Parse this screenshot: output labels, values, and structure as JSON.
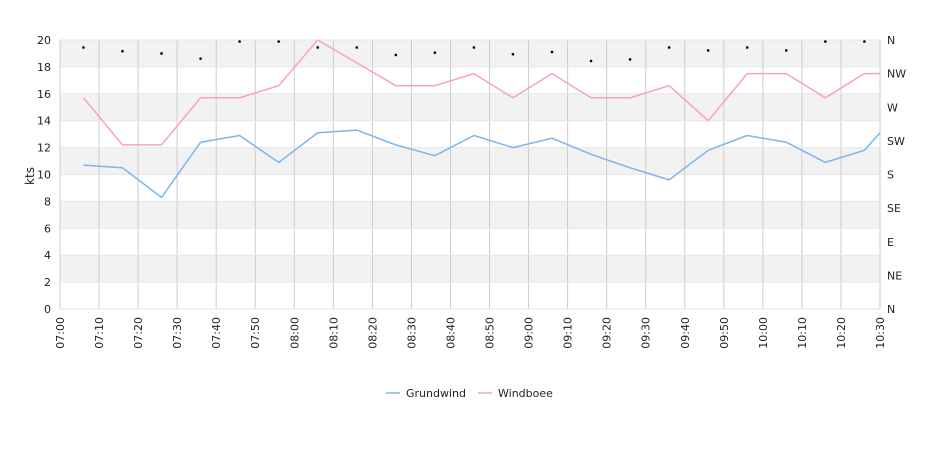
{
  "chart_data": {
    "type": "line",
    "ylabel": "kts",
    "ylim": [
      0,
      20
    ],
    "y_ticks": [
      "0",
      "2",
      "4",
      "6",
      "8",
      "10",
      "12",
      "14",
      "16",
      "18",
      "20"
    ],
    "x_ticks": [
      "07:00",
      "07:10",
      "07:20",
      "07:30",
      "07:40",
      "07:50",
      "08:00",
      "08:10",
      "08:20",
      "08:30",
      "08:40",
      "08:50",
      "09:00",
      "09:10",
      "09:20",
      "09:30",
      "09:40",
      "09:50",
      "10:00",
      "10:10",
      "10:20",
      "10:30"
    ],
    "direction_axis": {
      "labels": [
        "N",
        "NE",
        "E",
        "SE",
        "S",
        "SW",
        "W",
        "NW",
        "N"
      ],
      "range": [
        0,
        360
      ]
    },
    "x": [
      "07:06",
      "07:16",
      "07:26",
      "07:36",
      "07:46",
      "07:56",
      "08:06",
      "08:16",
      "08:26",
      "08:36",
      "08:46",
      "08:56",
      "09:06",
      "09:16",
      "09:26",
      "09:36",
      "09:46",
      "09:56",
      "10:06",
      "10:16",
      "10:26",
      "10:30"
    ],
    "series": [
      {
        "name": "Grundwind",
        "color": "#7cb5ec",
        "values": [
          10.7,
          10.5,
          8.3,
          12.4,
          12.9,
          10.9,
          13.1,
          13.3,
          12.2,
          11.4,
          12.9,
          12.0,
          12.7,
          11.5,
          10.5,
          9.6,
          11.8,
          12.9,
          12.4,
          10.9,
          11.8,
          13.1
        ]
      },
      {
        "name": "Windboee",
        "color": "#f7a0c8",
        "values": [
          15.7,
          12.2,
          12.2,
          15.7,
          15.7,
          16.6,
          20.0,
          18.3,
          16.6,
          16.6,
          17.5,
          15.7,
          17.5,
          15.7,
          15.7,
          16.6,
          14.0,
          17.5,
          17.5,
          15.7,
          17.5,
          17.5
        ]
      }
    ],
    "direction_points": {
      "x": [
        "07:06",
        "07:16",
        "07:26",
        "07:36",
        "07:46",
        "07:56",
        "08:06",
        "08:16",
        "08:26",
        "08:36",
        "08:46",
        "08:56",
        "09:06",
        "09:16",
        "09:26",
        "09:36",
        "09:46",
        "09:56",
        "10:06",
        "10:16",
        "10:26"
      ],
      "degrees": [
        350,
        345,
        342,
        335,
        358,
        358,
        350,
        350,
        340,
        343,
        350,
        341,
        344,
        332,
        334,
        350,
        346,
        350,
        346,
        358,
        358
      ]
    },
    "grid": true,
    "legend_position": "bottom-center"
  }
}
